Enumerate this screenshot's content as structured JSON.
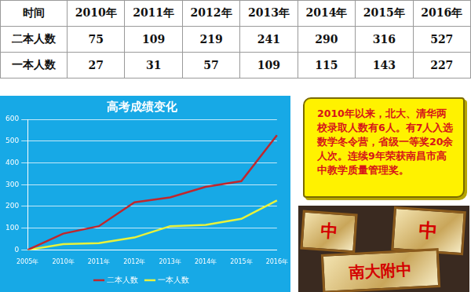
{
  "table": {
    "header": [
      "时间",
      "2010年",
      "2011年",
      "2012年",
      "2013年",
      "2014年",
      "2015年",
      "2016年"
    ],
    "rows": [
      [
        "二本人数",
        75,
        109,
        219,
        241,
        290,
        316,
        527
      ],
      [
        "一本人数",
        27,
        31,
        57,
        109,
        115,
        143,
        227
      ]
    ]
  },
  "chart_data": {
    "type": "line",
    "title": "高考成绩变化",
    "categories": [
      "2005年",
      "2010年",
      "2011年",
      "2012年",
      "2013年",
      "2014年",
      "2015年",
      "2016年"
    ],
    "series": [
      {
        "name": "二本人数",
        "color": "#c0272d",
        "values": [
          0,
          75,
          109,
          219,
          241,
          290,
          316,
          527
        ]
      },
      {
        "name": "一本人数",
        "color": "#e9f23a",
        "values": [
          0,
          27,
          31,
          57,
          109,
          115,
          143,
          227
        ]
      }
    ],
    "ylim": [
      0,
      600
    ],
    "yticks": [
      0,
      100,
      200,
      300,
      400,
      500,
      600
    ],
    "grid": true,
    "legend": "bottom",
    "marker": "none"
  },
  "note": {
    "text": "2010年以来，北大、清华两校录取人数有6人。有7人入选数学冬令营，省级一等奖20余人次。连续9年荣获南昌市高中教学质量管理奖。"
  },
  "plaques": {
    "texts": [
      "中",
      "中",
      "南大附中"
    ]
  }
}
